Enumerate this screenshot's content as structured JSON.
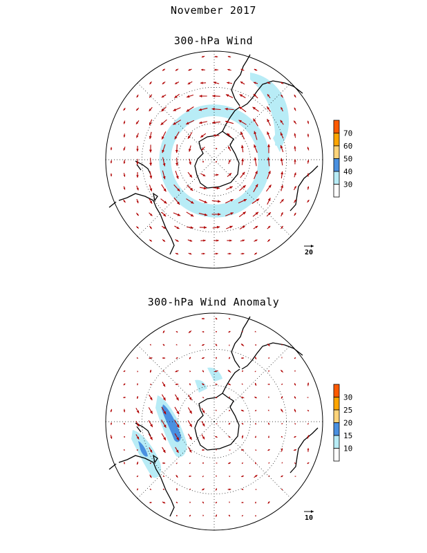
{
  "header": {
    "date": "November 2017",
    "panel1_title": "300-hPa Wind",
    "panel2_title": "300-hPa Wind Anomaly"
  },
  "panels": [
    {
      "name": "wind",
      "colorbar": {
        "labels": [
          "70",
          "60",
          "50",
          "40",
          "30"
        ],
        "colors": [
          "#ff5a00",
          "#ffa500",
          "#ffd47a",
          "#4a90e0",
          "#b8ecf6",
          "#ffffff"
        ]
      },
      "reference_vector": "20",
      "arrow_color": "#b00000",
      "shading": [
        {
          "level": "30",
          "color": "#b8ecf6",
          "desc": "jet band around Antarctica and South Atlantic"
        }
      ]
    },
    {
      "name": "anomaly",
      "colorbar": {
        "labels": [
          "30",
          "25",
          "20",
          "15",
          "10"
        ],
        "colors": [
          "#ff5a00",
          "#ffa500",
          "#ffd47a",
          "#4a90e0",
          "#b8ecf6",
          "#ffffff"
        ]
      },
      "reference_vector": "10",
      "arrow_color": "#b00000"
    }
  ]
}
